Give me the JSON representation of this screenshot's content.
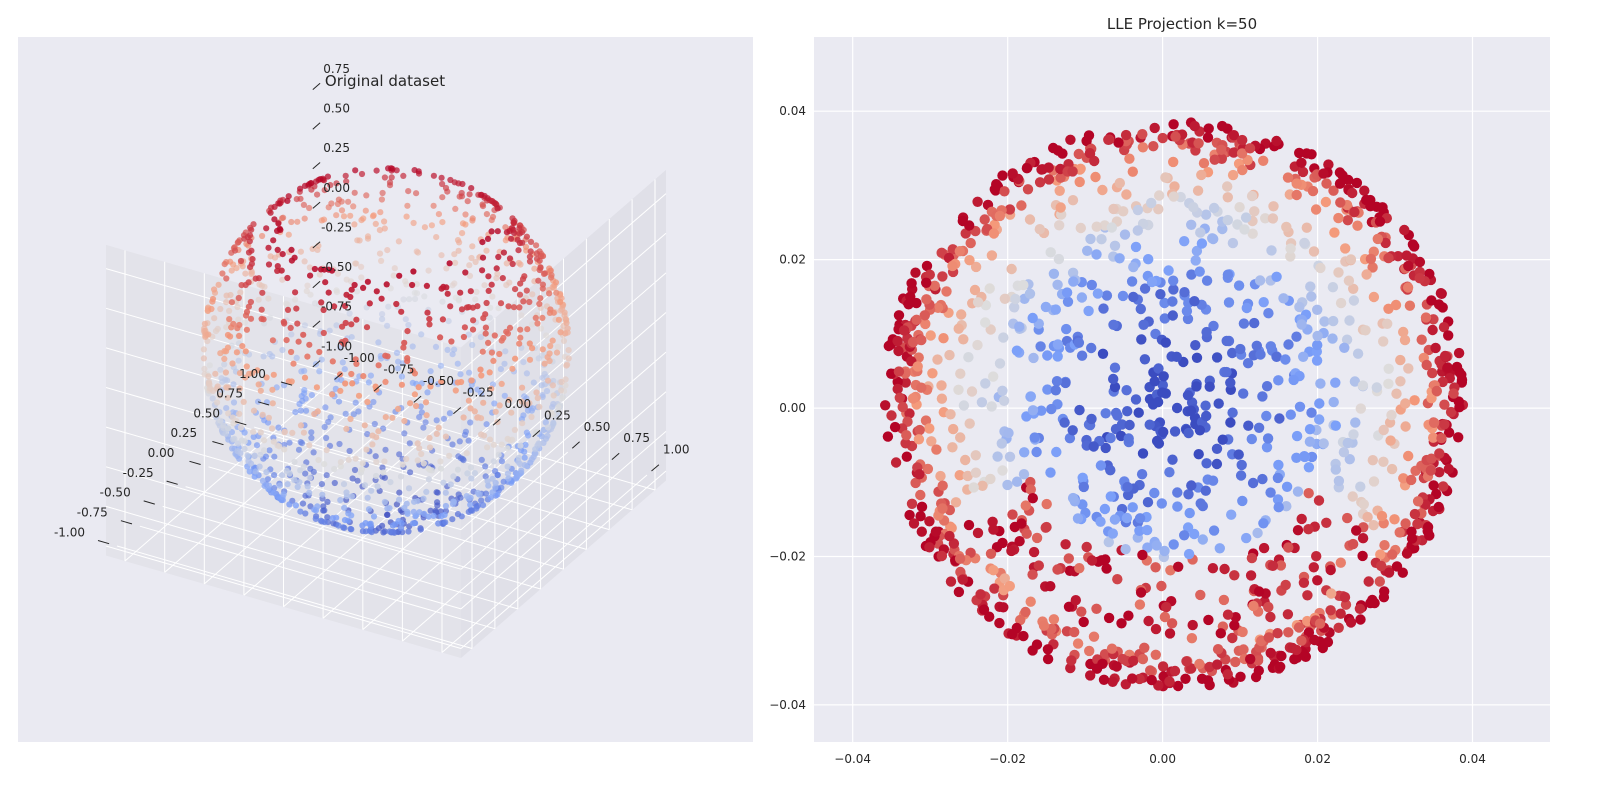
{
  "chart_data": [
    {
      "type": "scatter",
      "projection": "3d",
      "title": "Original dataset",
      "xlim": [
        -1.0,
        1.0
      ],
      "ylim": [
        -1.0,
        1.0
      ],
      "zlim": [
        -1.0,
        0.85
      ],
      "x_ticks": [
        "-1.00",
        "-0.75",
        "-0.50",
        "-0.25",
        "0.00",
        "0.25",
        "0.50",
        "0.75",
        "1.00"
      ],
      "y_ticks": [
        "-1.00",
        "-0.75",
        "-0.50",
        "-0.25",
        "0.00",
        "0.25",
        "0.50",
        "0.75",
        "1.00"
      ],
      "z_ticks": [
        "-1.00",
        "-0.75",
        "-0.50",
        "-0.25",
        "0.00",
        "0.25",
        "0.50",
        "0.75"
      ],
      "grid": true,
      "colormap": "coolwarm",
      "color_by": "height",
      "shape": "unit sphere with top cap removed",
      "cap_cut_z": 0.82,
      "n_points": 1500
    },
    {
      "type": "scatter",
      "title": "LLE Projection k=50",
      "xlim": [
        -0.045,
        0.05
      ],
      "ylim": [
        -0.045,
        0.05
      ],
      "x_ticks": [
        "-0.04",
        "-0.02",
        "0.00",
        "0.02",
        "0.04"
      ],
      "y_ticks": [
        "-0.04",
        "-0.02",
        "0.00",
        "0.02",
        "0.04"
      ],
      "grid": true,
      "colormap": "coolwarm",
      "shape": "disc",
      "center": [
        0.0015,
        0.0015
      ],
      "radius": 0.0375,
      "n_points": 1500
    }
  ],
  "colors": {
    "background": "#ffffff",
    "axes_face": "#eaeaf2",
    "grid": "#ffffff",
    "text": "#262626",
    "cmap_low": "#3b4cc0",
    "cmap_mid": "#dddddd",
    "cmap_high": "#b40426"
  }
}
